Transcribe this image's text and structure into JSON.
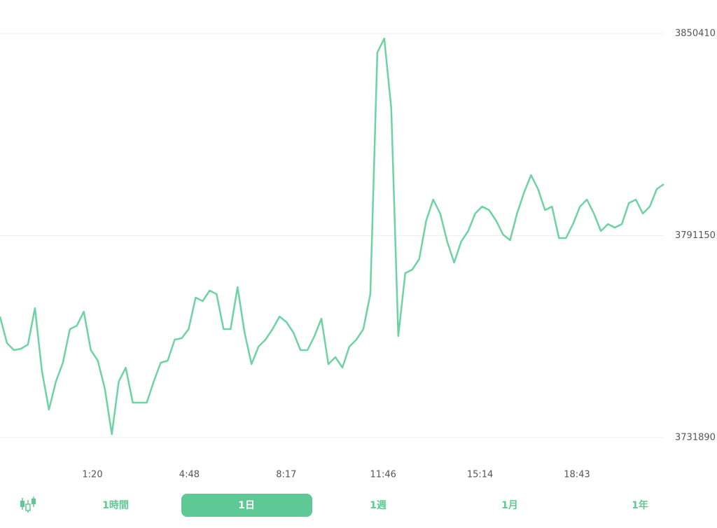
{
  "chart_data": {
    "type": "line",
    "series": [
      {
        "color": "#6ed3a2",
        "values": [
          3767430,
          3759620,
          3757570,
          3757980,
          3759210,
          3769890,
          3751410,
          3740110,
          3748330,
          3753870,
          3763730,
          3764760,
          3768870,
          3757570,
          3754490,
          3746270,
          3732920,
          3748330,
          3752430,
          3742160,
          3742160,
          3742160,
          3748330,
          3753870,
          3754490,
          3760650,
          3761060,
          3763730,
          3772970,
          3771950,
          3775030,
          3774000,
          3763730,
          3763730,
          3776060,
          3762700,
          3753460,
          3758600,
          3760650,
          3763730,
          3767430,
          3765790,
          3762700,
          3757570,
          3757570,
          3761680,
          3766810,
          3753460,
          3755520,
          3752430,
          3758600,
          3760650,
          3763730,
          3774000,
          3844860,
          3848970,
          3828430,
          3761680,
          3780160,
          3781190,
          3784270,
          3795570,
          3801730,
          3797620,
          3789410,
          3783240,
          3789410,
          3792490,
          3797620,
          3799680,
          3798650,
          3795570,
          3791460,
          3789820,
          3797620,
          3803780,
          3808920,
          3804810,
          3798650,
          3799680,
          3790430,
          3790430,
          3794540,
          3799680,
          3801730,
          3797620,
          3792490,
          3794540,
          3793510,
          3794540,
          3800700,
          3801730,
          3797620,
          3799680,
          3804810,
          3806250
        ]
      }
    ],
    "x_labels": [
      "1:20",
      "4:48",
      "8:17",
      "11:46",
      "15:14",
      "18:43"
    ],
    "ylim": [
      3731890,
      3850410
    ],
    "yticks": [
      3731890,
      3791150,
      3850410
    ],
    "grid": true
  },
  "tabs": [
    "1時間",
    "1日",
    "1週",
    "1月",
    "1年"
  ],
  "selected_tab": 1
}
